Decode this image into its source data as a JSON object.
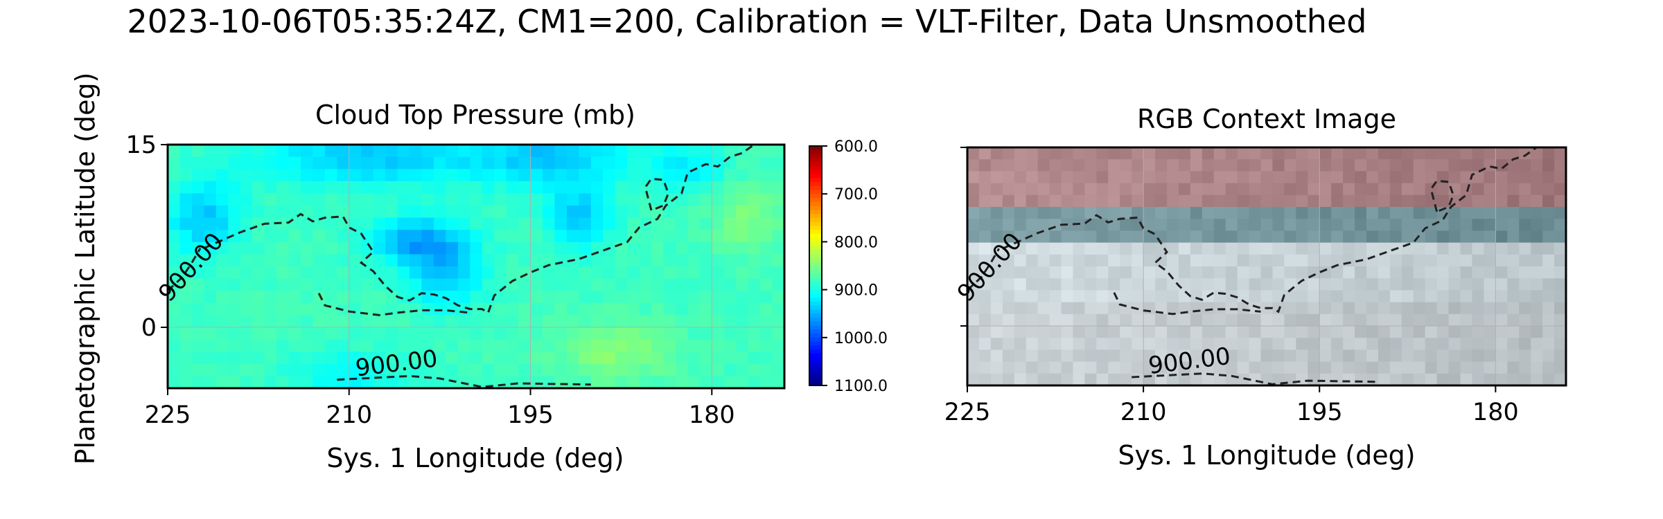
{
  "figure": {
    "suptitle": "2023-10-06T05:35:24Z, CM1=200, Calibration = VLT-Filter, Data Unsmoothed",
    "shared_ylabel": "Planetographic Latitude (deg)"
  },
  "chart_data": [
    {
      "type": "heatmap",
      "title": "Cloud Top Pressure (mb)",
      "xlabel": "Sys. 1 Longitude (deg)",
      "ylabel": "Planetographic Latitude (deg)",
      "xlim": [
        225,
        174
      ],
      "ylim": [
        -5,
        15
      ],
      "xticks": [
        225,
        210,
        195,
        180
      ],
      "xtick_labels": [
        "225",
        "210",
        "195",
        "180"
      ],
      "yticks": [
        15,
        0
      ],
      "ytick_labels": [
        "15",
        "0"
      ],
      "grid": true,
      "colormap": "jet_r",
      "colorbar": {
        "range": [
          600,
          1100
        ],
        "ticks": [
          600,
          700,
          800,
          900,
          1000,
          1100
        ],
        "tick_labels": [
          "600.0",
          "700.0",
          "800.0",
          "900.0",
          "1000.0",
          "1100.0"
        ],
        "reversed": true
      },
      "contour": {
        "level": 900,
        "label": "900.00",
        "style": "dashed"
      },
      "grid_dims": {
        "nx": 51,
        "ny": 20
      },
      "pressure_field_mb": {
        "background": 882,
        "features": [
          {
            "lon": 208,
            "lat": 14,
            "rlon": 10,
            "rlat": 2.5,
            "delta": 55
          },
          {
            "lon": 193,
            "lat": 14,
            "rlon": 6,
            "rlat": 2.5,
            "delta": 55
          },
          {
            "lon": 222,
            "lat": 9,
            "rlon": 3,
            "rlat": 3,
            "delta": 60
          },
          {
            "lon": 204,
            "lat": 7,
            "rlon": 4,
            "rlat": 2,
            "delta": 75
          },
          {
            "lon": 191,
            "lat": 9,
            "rlon": 2.5,
            "rlat": 2.5,
            "delta": 60
          },
          {
            "lon": 202,
            "lat": 4,
            "rlon": 3,
            "rlat": 2.5,
            "delta": 55
          },
          {
            "lon": 182,
            "lat": 13,
            "rlon": 3,
            "rlat": 2,
            "delta": 40
          },
          {
            "lon": 188,
            "lat": -2,
            "rlon": 5,
            "rlat": 2.5,
            "delta": -35
          },
          {
            "lon": 177,
            "lat": 9,
            "rlon": 3,
            "rlat": 3,
            "delta": -30
          },
          {
            "lon": 210,
            "lat": -4,
            "rlon": 5,
            "rlat": 2,
            "delta": 30
          }
        ]
      },
      "contour_paths": [
        [
          [
            222,
            6.5
          ],
          [
            219,
            7.8
          ],
          [
            217,
            8.5
          ],
          [
            215,
            8.6
          ],
          [
            214,
            9.3
          ],
          [
            213,
            8.7
          ],
          [
            212,
            9.0
          ],
          [
            210.5,
            9.1
          ],
          [
            210,
            8.2
          ],
          [
            209,
            7.7
          ],
          [
            208,
            6.2
          ],
          [
            209,
            5.3
          ],
          [
            208,
            4.6
          ],
          [
            207,
            3.4
          ],
          [
            206,
            2.5
          ],
          [
            205,
            2.2
          ],
          [
            204,
            2.8
          ],
          [
            203,
            2.7
          ],
          [
            202,
            2.4
          ],
          [
            201,
            1.8
          ],
          [
            200,
            1.5
          ],
          [
            199,
            1.5
          ],
          [
            198.5,
            1.2
          ],
          [
            198,
            2.6
          ],
          [
            196.5,
            3.8
          ],
          [
            195,
            4.5
          ],
          [
            193.5,
            5.1
          ],
          [
            191,
            5.6
          ],
          [
            189,
            6.3
          ],
          [
            187,
            7.0
          ],
          [
            186,
            8.2
          ],
          [
            184.5,
            8.9
          ],
          [
            183.8,
            10.0
          ],
          [
            182.5,
            11.0
          ],
          [
            182,
            12.7
          ],
          [
            180.5,
            13.4
          ],
          [
            179.5,
            13.2
          ],
          [
            178.5,
            14.0
          ],
          [
            177.5,
            14.3
          ],
          [
            176.5,
            15.0
          ]
        ],
        [
          [
            185,
            9.6
          ],
          [
            185.5,
            11.5
          ],
          [
            185,
            12.2
          ],
          [
            184,
            12.1
          ],
          [
            183.6,
            11.0
          ],
          [
            184,
            10.0
          ],
          [
            185,
            9.6
          ]
        ],
        [
          [
            212.5,
            2.8
          ],
          [
            212,
            1.8
          ],
          [
            210,
            1.3
          ],
          [
            207.5,
            1.0
          ],
          [
            206,
            1.2
          ],
          [
            204,
            1.4
          ],
          [
            202,
            1.4
          ],
          [
            200,
            1.2
          ]
        ],
        [
          [
            225,
            3.0
          ],
          [
            223.8,
            4.1
          ],
          [
            223,
            5.3
          ],
          [
            222.3,
            6.5
          ]
        ],
        [
          [
            211,
            -4.3
          ],
          [
            205,
            -4.0
          ],
          [
            202.5,
            -4.2
          ],
          [
            199,
            -4.9
          ],
          [
            196,
            -4.6
          ],
          [
            190,
            -4.7
          ]
        ]
      ]
    },
    {
      "type": "heatmap",
      "title": "RGB Context Image",
      "xlabel": "Sys. 1 Longitude (deg)",
      "xlim": [
        225,
        174
      ],
      "ylim": [
        -5,
        15
      ],
      "xticks": [
        225,
        210,
        195,
        180
      ],
      "xtick_labels": [
        "225",
        "210",
        "195",
        "180"
      ],
      "yticks": [
        15,
        0
      ],
      "grid": true,
      "contour": {
        "level": 900,
        "label": "900.00",
        "style": "dashed"
      },
      "bands": [
        {
          "lat_min": 10.5,
          "lat_max": 15,
          "color": "#b58c8f"
        },
        {
          "lat_min": 7.5,
          "lat_max": 10.5,
          "color": "#7f9fa6"
        },
        {
          "lat_min": 2,
          "lat_max": 7.5,
          "color": "#d2dde2"
        },
        {
          "lat_min": -5,
          "lat_max": 2,
          "color": "#ccd4d8"
        }
      ]
    }
  ],
  "colors": {
    "contour": "#222222",
    "axes": "#000000",
    "grid": "#b0b0b0"
  }
}
